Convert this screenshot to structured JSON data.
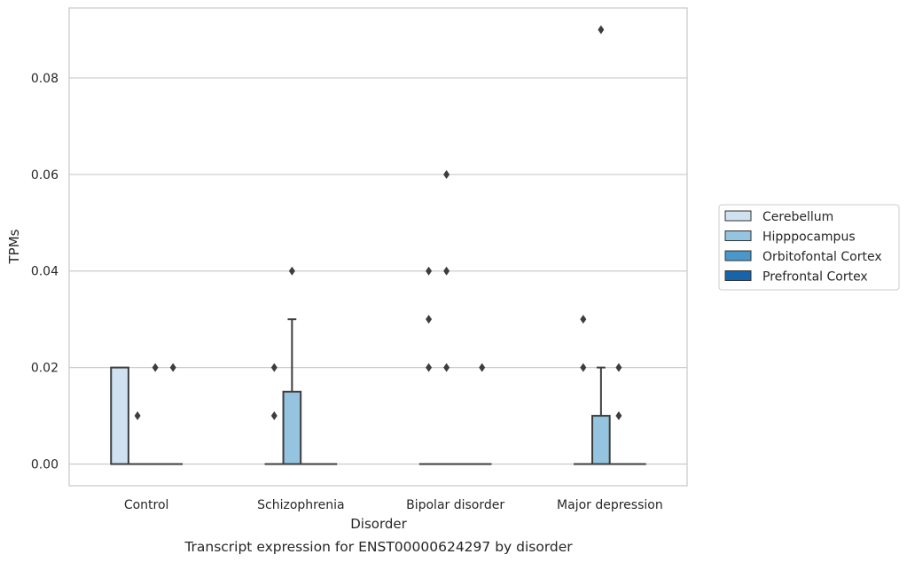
{
  "chart_data": {
    "type": "box",
    "title": "",
    "xlabel": "Disorder",
    "ylabel": "TPMs",
    "caption": "Transcript expression for ENST00000624297 by disorder",
    "ylim": [
      -0.0045,
      0.0945
    ],
    "yticks": [
      0.0,
      0.02,
      0.04,
      0.06,
      0.08
    ],
    "ytick_labels": [
      "0.00",
      "0.02",
      "0.04",
      "0.06",
      "0.08"
    ],
    "grid": "horizontal",
    "legend_position": "right",
    "categories": [
      "Control",
      "Schizophrenia",
      "Bipolar disorder",
      "Major depression"
    ],
    "series": [
      {
        "name": "Cerebellum",
        "color": "#d0e1f2",
        "boxes": [
          {
            "q1": 0,
            "median": 0,
            "q3": 0.02,
            "whisker_low": 0,
            "whisker_high": 0.02,
            "outliers": []
          },
          {
            "q1": 0,
            "median": 0,
            "q3": 0,
            "whisker_low": 0,
            "whisker_high": 0,
            "outliers": [
              0.01,
              0.02
            ]
          },
          {
            "q1": 0,
            "median": 0,
            "q3": 0,
            "whisker_low": 0,
            "whisker_high": 0,
            "outliers": [
              0.02,
              0.03,
              0.04
            ]
          },
          {
            "q1": 0,
            "median": 0,
            "q3": 0,
            "whisker_low": 0,
            "whisker_high": 0,
            "outliers": [
              0.02,
              0.03
            ]
          }
        ]
      },
      {
        "name": "Hipppocampus",
        "color": "#94c4df",
        "boxes": [
          {
            "q1": 0,
            "median": 0,
            "q3": 0,
            "whisker_low": 0,
            "whisker_high": 0,
            "outliers": [
              0.01
            ]
          },
          {
            "q1": 0,
            "median": 0,
            "q3": 0.015,
            "whisker_low": 0,
            "whisker_high": 0.03,
            "outliers": [
              0.04
            ]
          },
          {
            "q1": 0,
            "median": 0,
            "q3": 0,
            "whisker_low": 0,
            "whisker_high": 0,
            "outliers": [
              0.02,
              0.04,
              0.06
            ]
          },
          {
            "q1": 0,
            "median": 0,
            "q3": 0.01,
            "whisker_low": 0,
            "whisker_high": 0.02,
            "outliers": [
              0.09
            ]
          }
        ]
      },
      {
        "name": "Orbitofontal Cortex",
        "color": "#4a98c9",
        "boxes": [
          {
            "q1": 0,
            "median": 0,
            "q3": 0,
            "whisker_low": 0,
            "whisker_high": 0,
            "outliers": [
              0.02
            ]
          },
          {
            "q1": 0,
            "median": 0,
            "q3": 0,
            "whisker_low": 0,
            "whisker_high": 0,
            "outliers": []
          },
          {
            "q1": 0,
            "median": 0,
            "q3": 0,
            "whisker_low": 0,
            "whisker_high": 0,
            "outliers": []
          },
          {
            "q1": 0,
            "median": 0,
            "q3": 0,
            "whisker_low": 0,
            "whisker_high": 0,
            "outliers": [
              0.01,
              0.02
            ]
          }
        ]
      },
      {
        "name": "Prefrontal Cortex",
        "color": "#1764ab",
        "boxes": [
          {
            "q1": 0,
            "median": 0,
            "q3": 0,
            "whisker_low": 0,
            "whisker_high": 0,
            "outliers": [
              0.02
            ]
          },
          {
            "q1": 0,
            "median": 0,
            "q3": 0,
            "whisker_low": 0,
            "whisker_high": 0,
            "outliers": []
          },
          {
            "q1": 0,
            "median": 0,
            "q3": 0,
            "whisker_low": 0,
            "whisker_high": 0,
            "outliers": [
              0.02
            ]
          },
          {
            "q1": 0,
            "median": 0,
            "q3": 0,
            "whisker_low": 0,
            "whisker_high": 0,
            "outliers": []
          }
        ]
      }
    ]
  }
}
